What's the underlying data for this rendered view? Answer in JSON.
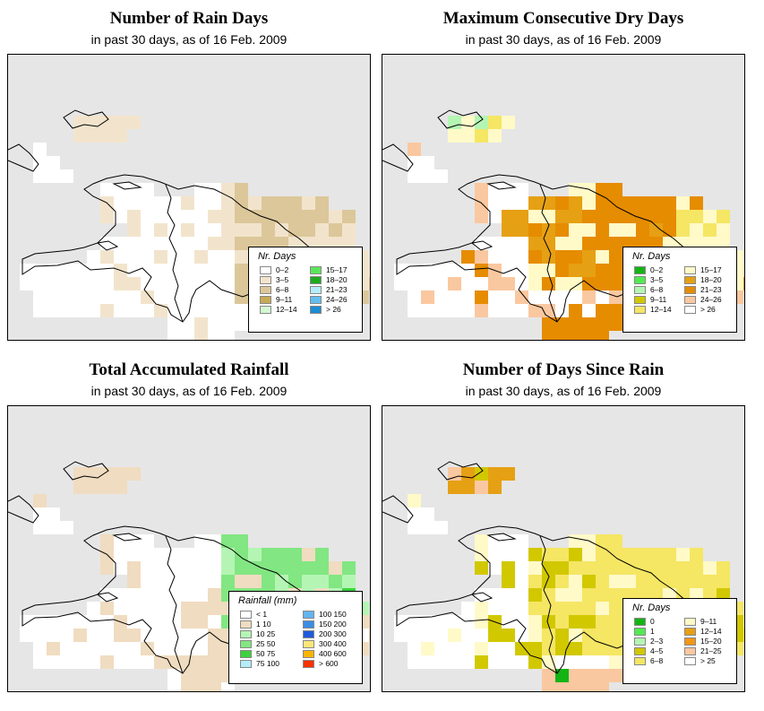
{
  "panels": [
    {
      "id": "rain-days",
      "title": "Number of Rain Days",
      "subtitle": "in past 30 days, as of  16 Feb. 2009",
      "legend": {
        "title": "Nr. Days",
        "items": [
          {
            "label": "0–2",
            "color": "#ffffff"
          },
          {
            "label": "3–5",
            "color": "#f2e4cc"
          },
          {
            "label": "6–8",
            "color": "#dcc79a"
          },
          {
            "label": "9–11",
            "color": "#c8aa55"
          },
          {
            "label": "12–14",
            "color": "#d2f8d2"
          },
          {
            "label": "15–17",
            "color": "#5ae65a"
          },
          {
            "label": "18–20",
            "color": "#1eaa1e"
          },
          {
            "label": "21–23",
            "color": "#b4ecf8"
          },
          {
            "label": "24–26",
            "color": "#64bef0"
          },
          {
            "label": "> 26",
            "color": "#1e8cd2"
          }
        ]
      }
    },
    {
      "id": "dry-days",
      "title": "Maximum Consecutive Dry Days",
      "subtitle": "in past 30 days, as of  16 Feb. 2009",
      "legend": {
        "title": "Nr. Days",
        "items": [
          {
            "label": "0–2",
            "color": "#14b414"
          },
          {
            "label": "3–5",
            "color": "#50eb50"
          },
          {
            "label": "6–8",
            "color": "#b4f5b4"
          },
          {
            "label": "9–11",
            "color": "#d2c800"
          },
          {
            "label": "12–14",
            "color": "#f5e664"
          },
          {
            "label": "15–17",
            "color": "#fffac8"
          },
          {
            "label": "18–20",
            "color": "#e6a014"
          },
          {
            "label": "21–23",
            "color": "#e68c00"
          },
          {
            "label": "24–26",
            "color": "#fac8a0"
          },
          {
            "label": "> 26",
            "color": "#ffffff"
          }
        ]
      }
    },
    {
      "id": "rainfall",
      "title": "Total Accumulated Rainfall",
      "subtitle": "in past 30 days, as of  16 Feb. 2009",
      "legend": {
        "title": "Rainfall (mm)",
        "items": [
          {
            "label": "< 1",
            "color": "#ffffff"
          },
          {
            "label": "1   10",
            "color": "#f0dcc0"
          },
          {
            "label": "10   25",
            "color": "#b4f5b4"
          },
          {
            "label": "25   50",
            "color": "#82e682"
          },
          {
            "label": "50   75",
            "color": "#3cd23c"
          },
          {
            "label": "75   100",
            "color": "#b4ecf8"
          },
          {
            "label": "100   150",
            "color": "#64b4f0"
          },
          {
            "label": "150   200",
            "color": "#3c8ce6"
          },
          {
            "label": "200   300",
            "color": "#1e5adc"
          },
          {
            "label": "300   400",
            "color": "#fae678"
          },
          {
            "label": "400   600",
            "color": "#fab400"
          },
          {
            "label": "> 600",
            "color": "#fa3200"
          }
        ]
      }
    },
    {
      "id": "since-rain",
      "title": "Number of Days Since Rain",
      "subtitle": "in past 30 days, as of  16 Feb. 2009",
      "legend": {
        "title": "Nr. Days",
        "items": [
          {
            "label": "0",
            "color": "#14b414"
          },
          {
            "label": "1",
            "color": "#50eb50"
          },
          {
            "label": "2–3",
            "color": "#b4f5b4"
          },
          {
            "label": "4–5",
            "color": "#d2c800"
          },
          {
            "label": "6–8",
            "color": "#f5e664"
          },
          {
            "label": "9–11",
            "color": "#fffac8"
          },
          {
            "label": "12–14",
            "color": "#e6a014"
          },
          {
            "label": "15–20",
            "color": "#f59614"
          },
          {
            "label": "21–25",
            "color": "#fac8a0"
          },
          {
            "label": "> 25",
            "color": "#ffffff"
          }
        ]
      }
    }
  ]
}
